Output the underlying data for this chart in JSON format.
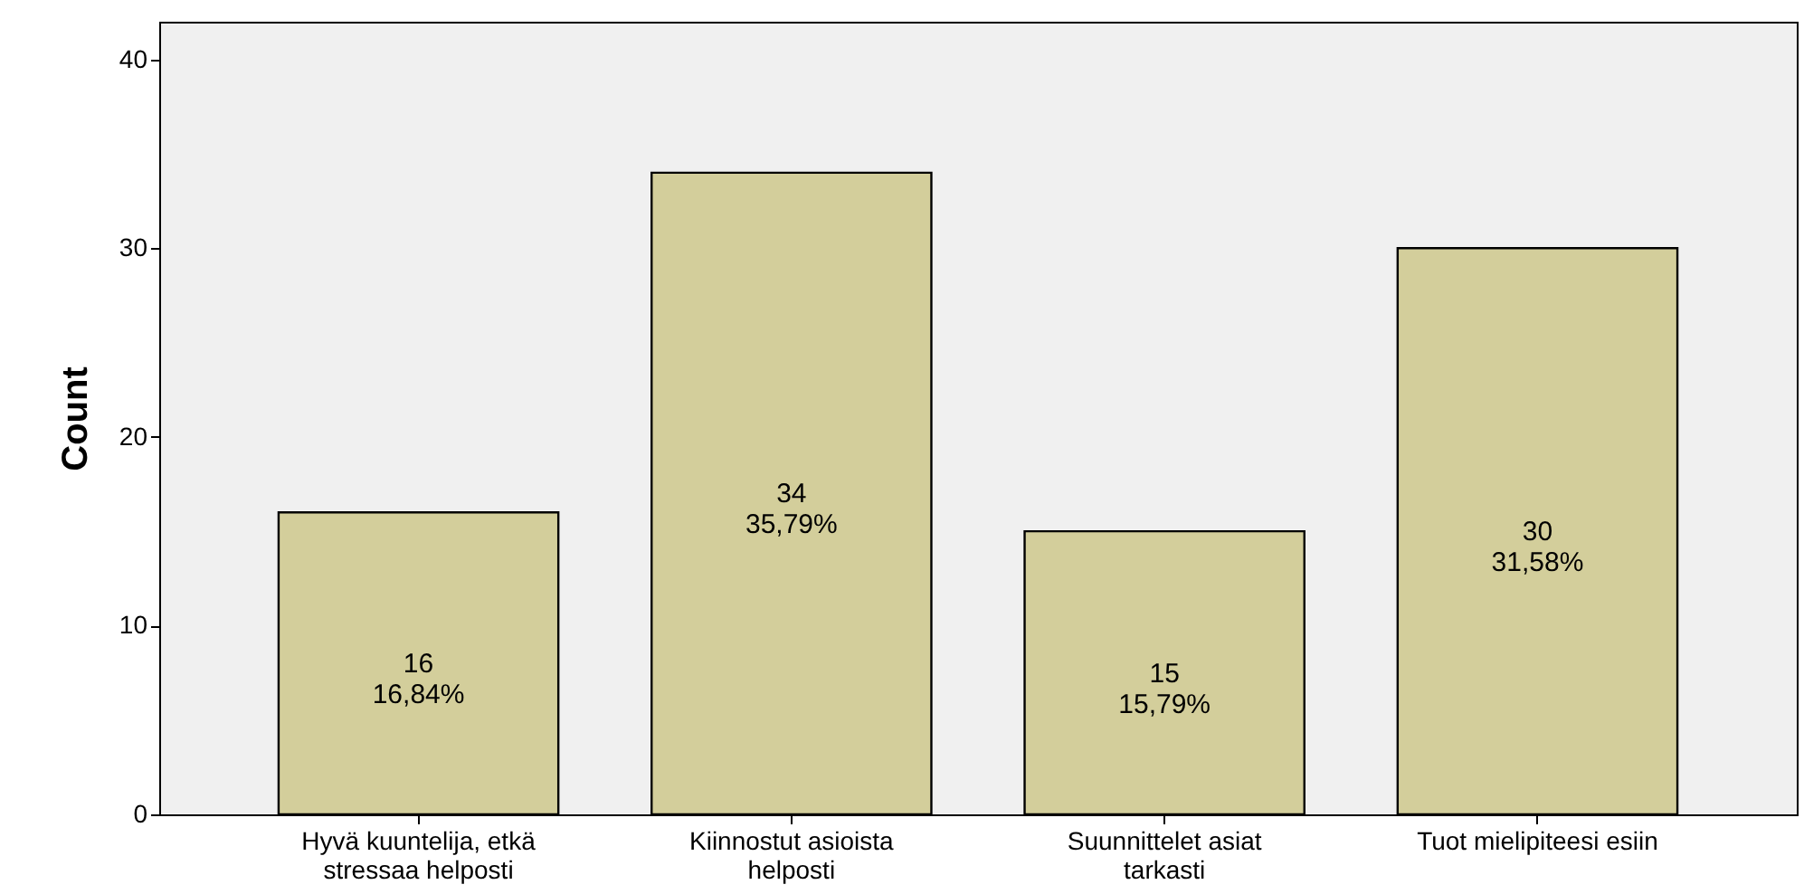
{
  "chart_data": {
    "type": "bar",
    "ylabel": "Count",
    "categories": [
      "Hyvä kuuntelija, etkä stressaa helposti",
      "Kiinnostut asioista helposti",
      "Suunnittelet asiat tarkasti",
      "Tuot mielipiteesi esiin"
    ],
    "values": [
      16,
      34,
      15,
      30
    ],
    "color": "#d3ce9b",
    "value_labels": [
      "16\n16,84%",
      "34\n35,79%",
      "15\n15,79%",
      "30\n31,58%"
    ],
    "ylim": [
      0,
      42
    ],
    "yticks": [
      0,
      10,
      20,
      30,
      40
    ],
    "grid": false
  }
}
